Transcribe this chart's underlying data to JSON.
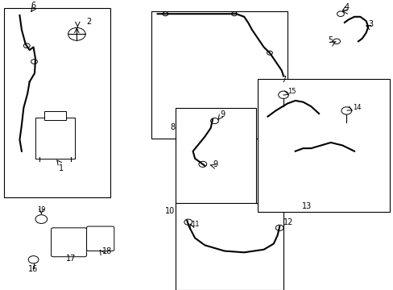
{
  "bg_color": "#ffffff",
  "line_color": "#000000",
  "box_color": "#000000"
}
